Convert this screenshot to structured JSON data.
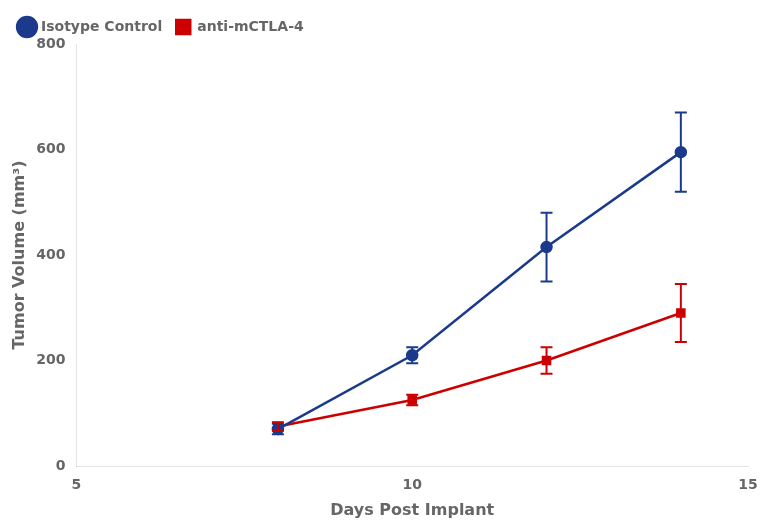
{
  "chart_data": {
    "type": "line",
    "xlabel": "Days Post Implant",
    "ylabel": "Tumor Volume (mm³)",
    "x": [
      8,
      10,
      12,
      14
    ],
    "series": [
      {
        "name": "Isotype Control",
        "color": "#1B3A8C",
        "marker": "circle",
        "values": [
          70,
          210,
          415,
          595
        ],
        "error_low": [
          10,
          15,
          65,
          75
        ],
        "error_high": [
          10,
          15,
          65,
          75
        ]
      },
      {
        "name": "anti-mCTLA-4",
        "color": "#CC0000",
        "marker": "square",
        "values": [
          75,
          125,
          200,
          290
        ],
        "error_low": [
          8,
          10,
          25,
          55
        ],
        "error_high": [
          8,
          10,
          25,
          55
        ]
      }
    ],
    "xlim": [
      5,
      15
    ],
    "xticks": [
      5,
      10,
      15
    ],
    "ylim": [
      0,
      800
    ],
    "yticks": [
      0,
      200,
      400,
      600,
      800
    ],
    "legend": "upper left",
    "grid": false
  }
}
